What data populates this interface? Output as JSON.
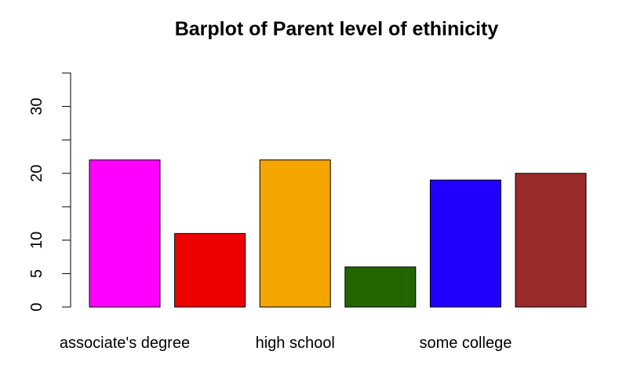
{
  "chart_data": {
    "type": "bar",
    "title": "Barplot of Parent level of ethinicity",
    "xlabel": "",
    "ylabel": "",
    "categories": [
      "associate's degree",
      "",
      "high school",
      "",
      "some college",
      ""
    ],
    "values": [
      22,
      11,
      22,
      6,
      19,
      20
    ],
    "colors": [
      "#ff00ff",
      "#ee0000",
      "#f4a500",
      "#226600",
      "#2200ff",
      "#9b2a2a"
    ],
    "yticks": [
      0,
      5,
      10,
      20,
      30
    ],
    "ylim": [
      0,
      35
    ],
    "grid": false,
    "legend": "none"
  }
}
